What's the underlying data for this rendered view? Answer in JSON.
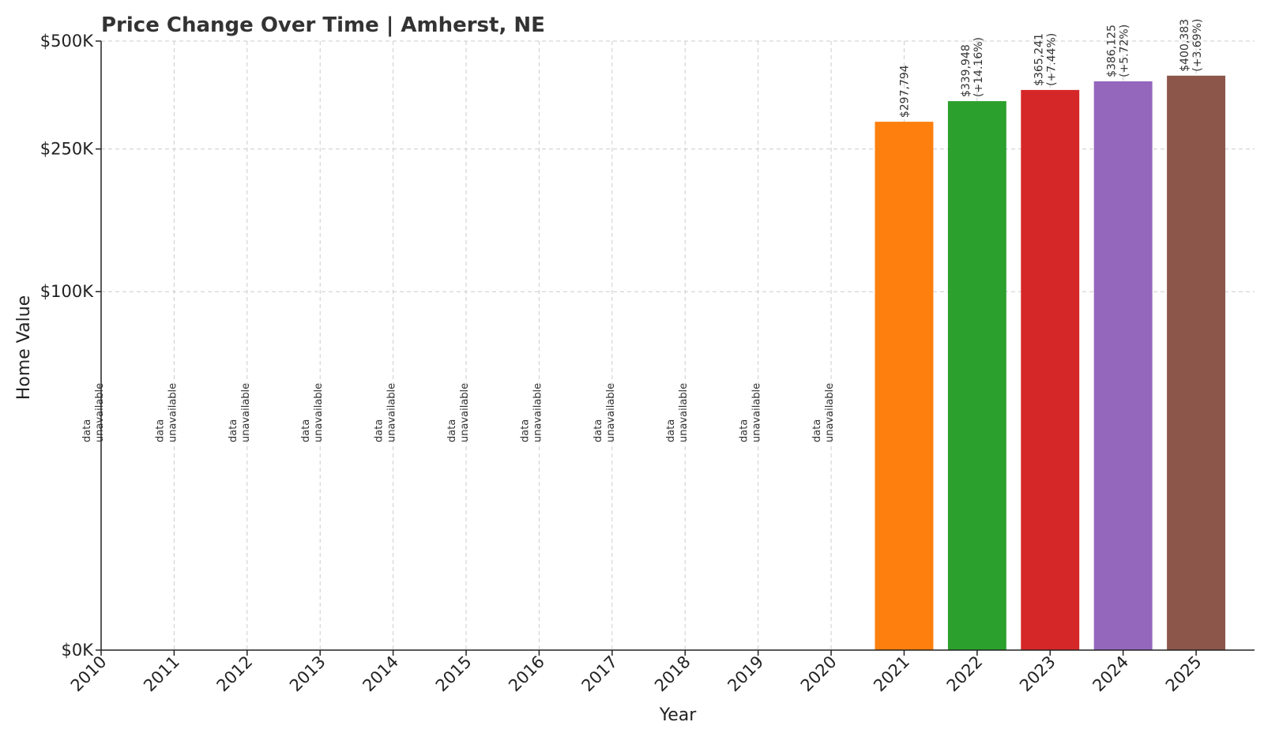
{
  "chart_data": {
    "type": "bar",
    "title": "Price Change Over Time | Amherst, NE",
    "xlabel": "Year",
    "ylabel": "Home Value",
    "categories": [
      "2010",
      "2011",
      "2012",
      "2013",
      "2014",
      "2015",
      "2016",
      "2017",
      "2018",
      "2019",
      "2020",
      "2021",
      "2022",
      "2023",
      "2024",
      "2025"
    ],
    "values": [
      null,
      null,
      null,
      null,
      null,
      null,
      null,
      null,
      null,
      null,
      null,
      297794,
      339948,
      365241,
      386125,
      400383
    ],
    "bar_labels": [
      "",
      "",
      "",
      "",
      "",
      "",
      "",
      "",
      "",
      "",
      "",
      "$297,794",
      "$339,948",
      "$365,241",
      "$386,125",
      "$400,383"
    ],
    "pct_labels": [
      "",
      "",
      "",
      "",
      "",
      "",
      "",
      "",
      "",
      "",
      "",
      "",
      "(+14.16%)",
      "(+7.44%)",
      "(+5.72%)",
      "(+3.69%)"
    ],
    "unavailable_label": [
      "data",
      "unavailable"
    ],
    "colors": [
      "#1f77b4",
      "#ff7f0e",
      "#2ca02c",
      "#d62728",
      "#9467bd",
      "#8c564b",
      "#e377c2",
      "#7f7f7f",
      "#bcbd22",
      "#17becf",
      "#1f77b4",
      "#ff7f0e",
      "#2ca02c",
      "#d62728",
      "#9467bd",
      "#8c564b"
    ],
    "yticks": [
      0,
      100000,
      250000,
      500000
    ],
    "ytick_labels": [
      "$0K",
      "$100K",
      "$250K",
      "$500K"
    ],
    "ylim": [
      0,
      500000
    ],
    "yscale": "symlog",
    "grid": true
  }
}
